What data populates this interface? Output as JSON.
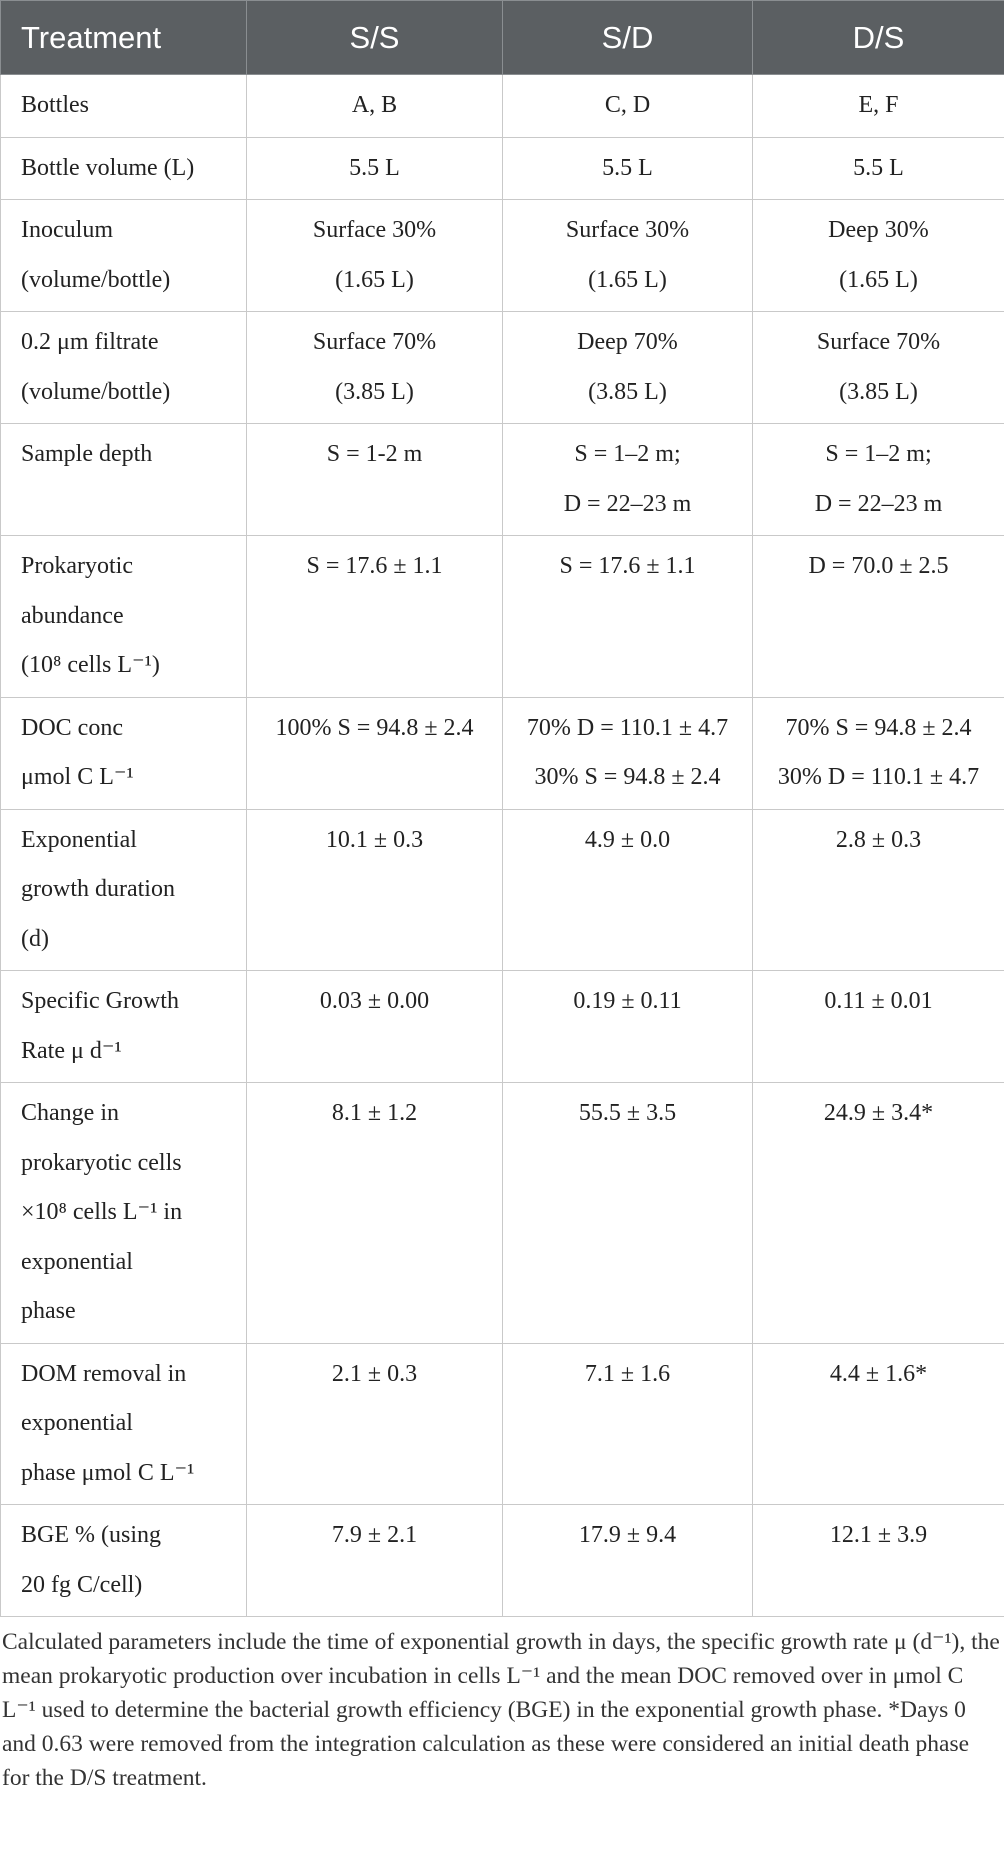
{
  "table": {
    "header": [
      "Treatment",
      "S/S",
      "S/D",
      "D/S"
    ],
    "rows": [
      [
        [
          "Bottles"
        ],
        [
          "A, B"
        ],
        [
          "C, D"
        ],
        [
          "E, F"
        ]
      ],
      [
        [
          "Bottle volume (L)"
        ],
        [
          "5.5 L"
        ],
        [
          "5.5 L"
        ],
        [
          "5.5 L"
        ]
      ],
      [
        [
          "Inoculum",
          "(volume/bottle)"
        ],
        [
          "Surface 30%",
          "(1.65 L)"
        ],
        [
          "Surface 30%",
          "(1.65 L)"
        ],
        [
          "Deep 30%",
          "(1.65 L)"
        ]
      ],
      [
        [
          "0.2 μm filtrate",
          "(volume/bottle)"
        ],
        [
          "Surface 70%",
          "(3.85 L)"
        ],
        [
          "Deep 70%",
          "(3.85 L)"
        ],
        [
          "Surface 70%",
          "(3.85 L)"
        ]
      ],
      [
        [
          "Sample depth"
        ],
        [
          "S = 1-2 m"
        ],
        [
          "S = 1–2 m;",
          "D = 22–23 m"
        ],
        [
          "S = 1–2 m;",
          "D = 22–23 m"
        ]
      ],
      [
        [
          "Prokaryotic",
          "abundance",
          "(10⁸ cells L⁻¹)"
        ],
        [
          "S = 17.6 ± 1.1"
        ],
        [
          "S = 17.6 ± 1.1"
        ],
        [
          "D = 70.0 ± 2.5"
        ]
      ],
      [
        [
          "DOC conc",
          "μmol C L⁻¹"
        ],
        [
          "100% S = 94.8 ± 2.4"
        ],
        [
          "70% D = 110.1 ± 4.7",
          "30% S = 94.8 ± 2.4"
        ],
        [
          "70% S = 94.8 ± 2.4",
          "30% D = 110.1 ± 4.7"
        ]
      ],
      [
        [
          "Exponential",
          "growth duration",
          "(d)"
        ],
        [
          "10.1 ± 0.3"
        ],
        [
          "4.9 ± 0.0"
        ],
        [
          "2.8 ± 0.3"
        ]
      ],
      [
        [
          "Specific Growth",
          "Rate μ d⁻¹"
        ],
        [
          "0.03 ± 0.00"
        ],
        [
          "0.19 ± 0.11"
        ],
        [
          "0.11 ± 0.01"
        ]
      ],
      [
        [
          "Change in",
          "prokaryotic cells",
          "×10⁸ cells L⁻¹ in",
          "exponential",
          "phase"
        ],
        [
          "8.1 ± 1.2"
        ],
        [
          "55.5 ± 3.5"
        ],
        [
          "24.9 ± 3.4*"
        ]
      ],
      [
        [
          "DOM removal in",
          "exponential",
          "phase μmol C L⁻¹"
        ],
        [
          "2.1 ± 0.3"
        ],
        [
          "7.1 ± 1.6"
        ],
        [
          "4.4 ± 1.6*"
        ]
      ],
      [
        [
          "BGE % (using",
          "20 fg C/cell)"
        ],
        [
          "7.9 ± 2.1"
        ],
        [
          "17.9 ± 9.4"
        ],
        [
          "12.1 ± 3.9"
        ]
      ]
    ]
  },
  "caption": "Calculated parameters include the time of exponential growth in days, the specific growth rate μ (d⁻¹), the mean prokaryotic production over incubation in cells L⁻¹ and the mean DOC removed over in μmol C L⁻¹ used to determine the bacterial growth efficiency (BGE) in the exponential growth phase. *Days 0 and 0.63 were removed from the integration calculation as these were considered an initial death phase for the D/S treatment."
}
